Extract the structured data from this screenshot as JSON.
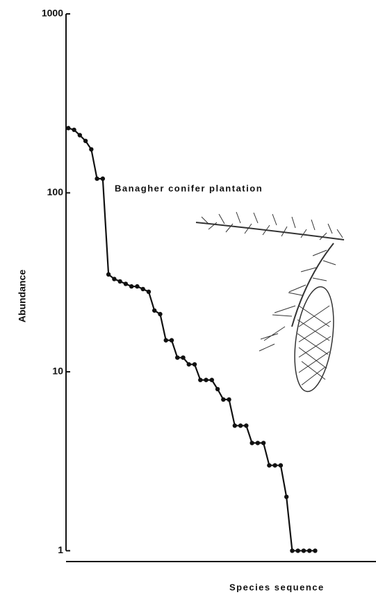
{
  "chart_data": {
    "type": "line",
    "annotation": "Banagher conifer plantation",
    "y_label": "Abundance",
    "x_label": "Species sequence",
    "x": [
      1,
      2,
      3,
      4,
      5,
      6,
      7,
      8,
      9,
      10,
      11,
      12,
      13,
      14,
      15,
      16,
      17,
      18,
      19,
      20,
      21,
      22,
      23,
      24,
      25,
      26,
      27,
      28,
      29,
      30,
      31,
      32,
      33,
      34,
      35,
      36,
      37,
      38,
      39,
      40,
      41,
      42,
      43,
      44
    ],
    "values": [
      230,
      225,
      210,
      195,
      175,
      120,
      120,
      35,
      33,
      32,
      31,
      30,
      30,
      29,
      28,
      22,
      21,
      15,
      15,
      12,
      12,
      11,
      11,
      9,
      9,
      9,
      8,
      7,
      7,
      5,
      5,
      5,
      4,
      4,
      4,
      3,
      3,
      3,
      2,
      1,
      1,
      1,
      1,
      1
    ],
    "color": "#111111",
    "xlim": [
      0.6,
      54.6
    ],
    "ylim": [
      0.87,
      1000
    ],
    "yticks": [
      1,
      10,
      100,
      1000
    ],
    "y_scale": "log"
  }
}
